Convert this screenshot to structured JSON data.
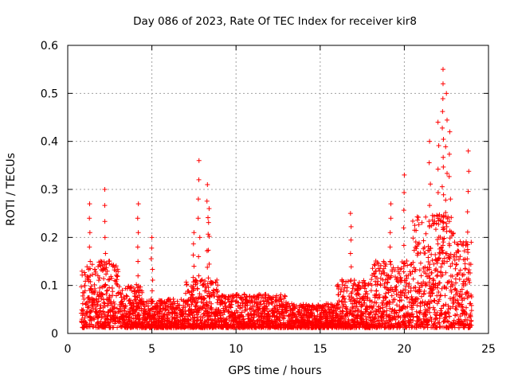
{
  "chart_data": {
    "type": "scatter",
    "title": "Day 086 of 2023, Rate Of TEC Index for receiver kir8",
    "xlabel": "GPS time / hours",
    "ylabel": "ROTI / TECUs",
    "xlim": [
      0,
      25
    ],
    "ylim": [
      0,
      0.6
    ],
    "xticks": [
      0,
      5,
      10,
      15,
      20,
      25
    ],
    "yticks": [
      0,
      0.1,
      0.2,
      0.3,
      0.4,
      0.5,
      0.6
    ],
    "xtick_labels": [
      "0",
      "5",
      "10",
      "15",
      "20",
      "25"
    ],
    "ytick_labels": [
      "0",
      "0.1",
      "0.2",
      "0.3",
      "0.4",
      "0.5",
      "0.6"
    ],
    "grid": true,
    "marker": "+",
    "color": "#ff0000",
    "series": [
      {
        "name": "ROTI",
        "x_range": [
          0.8,
          24.0
        ],
        "note": "dense band of points from 0.01 to ~0.1 across the whole day, with higher spikes",
        "notable_points": [
          {
            "x": 1.3,
            "y": 0.27
          },
          {
            "x": 2.2,
            "y": 0.3
          },
          {
            "x": 4.2,
            "y": 0.27
          },
          {
            "x": 5.0,
            "y": 0.2
          },
          {
            "x": 7.5,
            "y": 0.21
          },
          {
            "x": 7.8,
            "y": 0.36
          },
          {
            "x": 8.3,
            "y": 0.31
          },
          {
            "x": 8.4,
            "y": 0.26
          },
          {
            "x": 16.8,
            "y": 0.25
          },
          {
            "x": 19.2,
            "y": 0.27
          },
          {
            "x": 20.0,
            "y": 0.33
          },
          {
            "x": 21.5,
            "y": 0.4
          },
          {
            "x": 22.0,
            "y": 0.44
          },
          {
            "x": 22.3,
            "y": 0.55
          },
          {
            "x": 22.3,
            "y": 0.52
          },
          {
            "x": 22.5,
            "y": 0.5
          },
          {
            "x": 22.7,
            "y": 0.42
          },
          {
            "x": 23.8,
            "y": 0.38
          }
        ]
      }
    ]
  }
}
